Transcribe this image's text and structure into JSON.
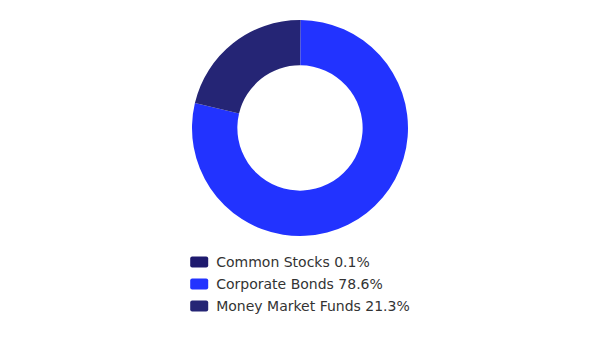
{
  "chart_data": {
    "type": "donut",
    "categories": [
      "Common Stocks 0.1%",
      "Corporate Bonds 78.6%",
      "Money Market Funds 21.3%"
    ],
    "values": [
      0.1,
      78.6,
      21.3
    ],
    "colors": [
      "#1e1a6e",
      "#2233ff",
      "#252575"
    ],
    "legend": "bottom"
  }
}
